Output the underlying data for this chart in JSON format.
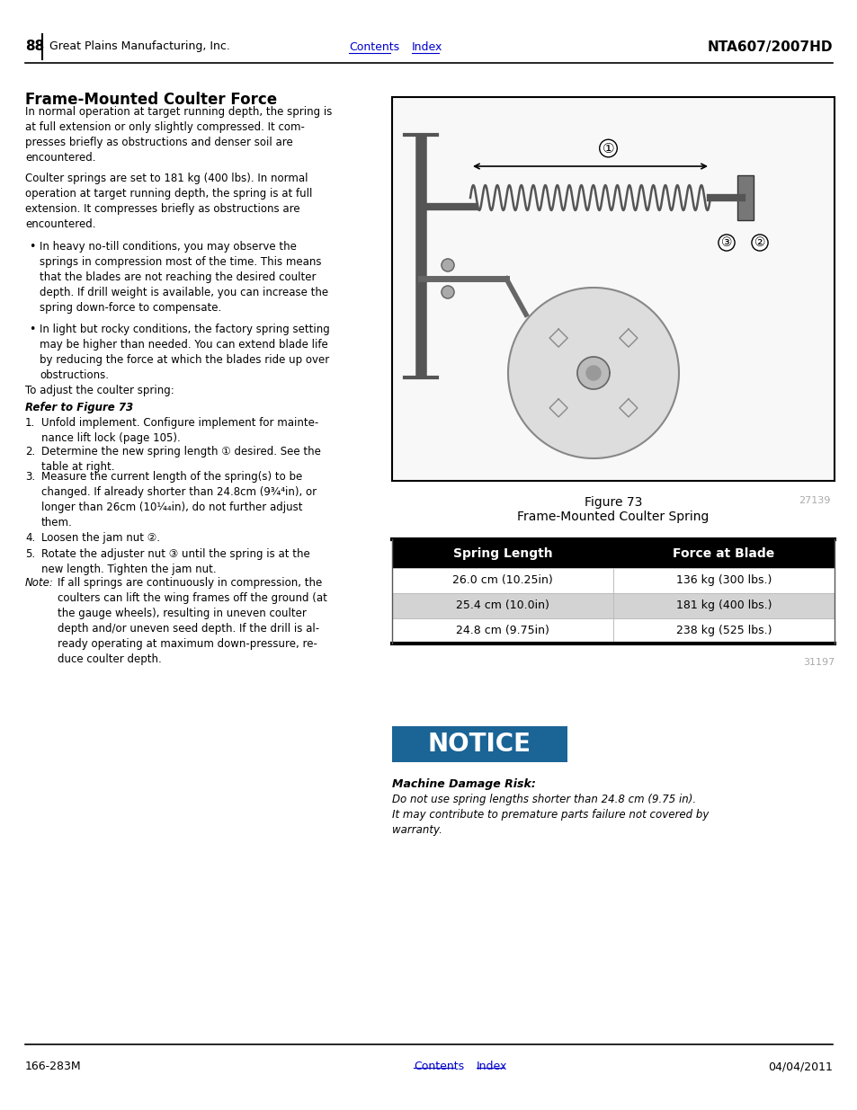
{
  "page_number": "88",
  "company": "Great Plains Manufacturing, Inc.",
  "contents_link": "Contents",
  "index_link": "Index",
  "model": "NTA607/2007HD",
  "footer_left": "166-283M",
  "footer_date": "04/04/2011",
  "title": "Frame-Mounted Coulter Force",
  "para1": "In normal operation at target running depth, the spring is\nat full extension or only slightly compressed. It com-\npresses briefly as obstructions and denser soil are\nencountered.",
  "para2": "Coulter springs are set to 181 kg (400 lbs). In normal\noperation at target running depth, the spring is at full\nextension. It compresses briefly as obstructions are\nencountered.",
  "bullet1": "In heavy no-till conditions, you may observe the\nsprings in compression most of the time. This means\nthat the blades are not reaching the desired coulter\ndepth. If drill weight is available, you can increase the\nspring down-force to compensate.",
  "bullet2": "In light but rocky conditions, the factory spring setting\nmay be higher than needed. You can extend blade life\nby reducing the force at which the blades ride up over\nobstructions.",
  "to_adjust": "To adjust the coulter spring:",
  "refer": "Refer to Figure 73",
  "step1": "Unfold implement. Configure implement for mainte-\nnance lift lock (page 105).",
  "step2": "Determine the new spring length ① desired. See the\ntable at right.",
  "step3": "Measure the current length of the spring(s) to be\nchanged. If already shorter than 24.8cm (9¾⁴in), or\nlonger than 26cm (10¼₄in), do not further adjust\nthem.",
  "step4": "Loosen the jam nut ②.",
  "step5": "Rotate the adjuster nut ③ until the spring is at the\nnew length. Tighten the jam nut.",
  "note_label": "Note:",
  "note_text": "If all springs are continuously in compression, the\ncoulters can lift the wing frames off the ground (at\nthe gauge wheels), resulting in uneven coulter\ndepth and/or uneven seed depth. If the drill is al-\nready operating at maximum down-pressure, re-\nduce coulter depth.",
  "figure_number": "Figure 73",
  "figure_caption": "Frame-Mounted Coulter Spring",
  "figure_id": "27139",
  "table_id": "31197",
  "table_header": [
    "Spring Length",
    "Force at Blade"
  ],
  "table_rows": [
    [
      "26.0 cm (10.25in)",
      "136 kg (300 lbs.)"
    ],
    [
      "25.4 cm (10.0in)",
      "181 kg (400 lbs.)"
    ],
    [
      "24.8 cm (9.75in)",
      "238 kg (525 lbs.)"
    ]
  ],
  "notice_label": "NOTICE",
  "notice_title": "Machine Damage Risk:",
  "notice_body": "Do not use spring lengths shorter than 24.8 cm (9.75 in).\nIt may contribute to premature parts failure not covered by\nwarranty.",
  "link_color": "#0000CC",
  "table_header_bg": "#000000",
  "table_header_fg": "#ffffff",
  "table_row_alt_bg": "#d3d3d3",
  "table_row_bg": "#ffffff",
  "notice_bg": "#1a6496",
  "notice_fg": "#ffffff",
  "bg_color": "#ffffff"
}
